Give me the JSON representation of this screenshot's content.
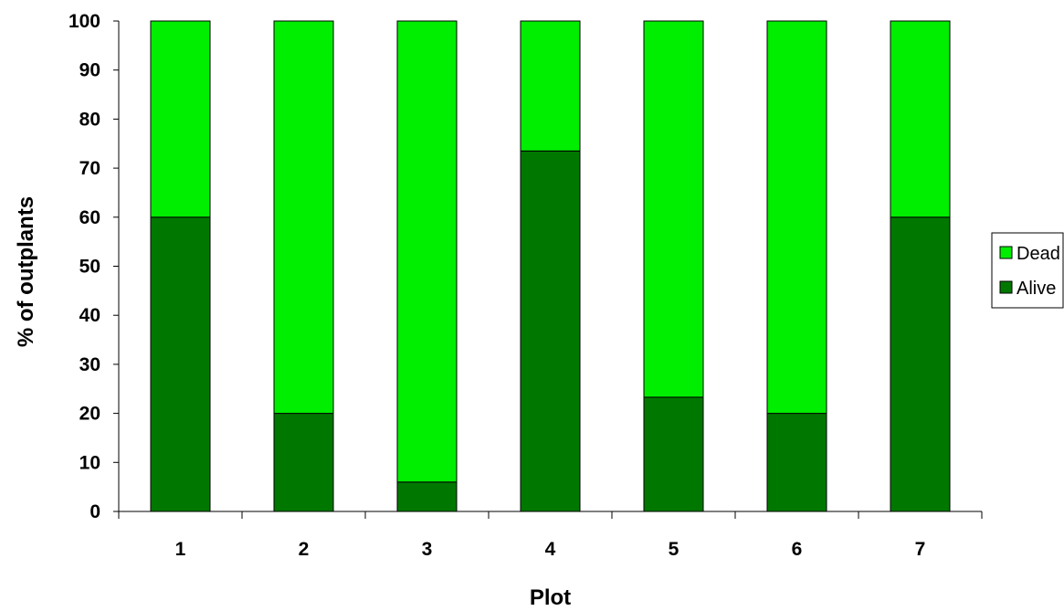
{
  "chart_data": {
    "type": "bar",
    "stacked": true,
    "categories": [
      "1",
      "2",
      "3",
      "4",
      "5",
      "6",
      "7"
    ],
    "series": [
      {
        "name": "Alive",
        "values": [
          60,
          20,
          6,
          73.5,
          23.3,
          20,
          60
        ],
        "color": "#007800"
      },
      {
        "name": "Dead",
        "values": [
          40,
          80,
          94,
          26.5,
          76.7,
          80,
          40
        ],
        "color": "#00ee00"
      }
    ],
    "title": "",
    "xlabel": "Plot",
    "ylabel": "% of outplants",
    "ylim": [
      0,
      100
    ],
    "yticks": [
      "0",
      "10",
      "20",
      "30",
      "40",
      "50",
      "60",
      "70",
      "80",
      "90",
      "100"
    ],
    "grid": false,
    "legend": {
      "position": "right",
      "entries": [
        "Dead",
        "Alive"
      ]
    }
  }
}
